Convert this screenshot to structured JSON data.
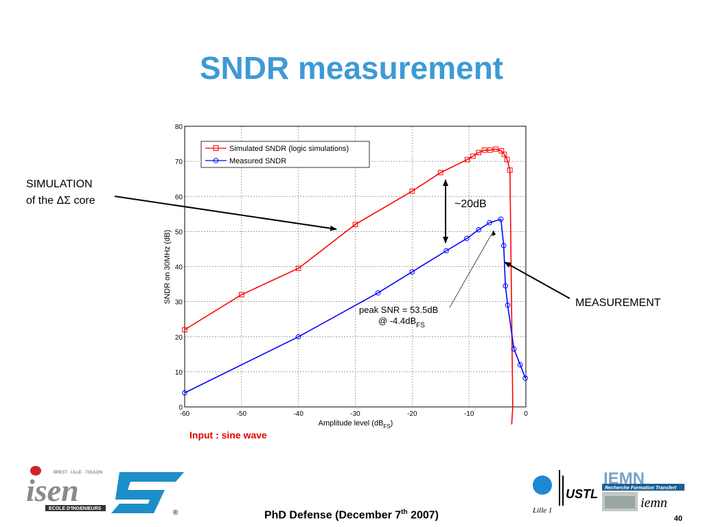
{
  "slide": {
    "title": "SNDR measurement",
    "annotations": {
      "simulation_line1": "SIMULATION",
      "simulation_line2": "of the ΔΣ core",
      "measurement": "MEASUREMENT",
      "gap": "~20dB",
      "peak_line1": "peak SNR = 53.5dB",
      "peak_line2_main": "@ -4.4dB",
      "peak_line2_sub": "FS"
    },
    "input_note": "Input : sine wave",
    "footer_main": "PhD Defense (December 7",
    "footer_sup": "th",
    "footer_end": " 2007)",
    "page_number": "40"
  },
  "logos": {
    "isen_text": "isen",
    "isen_cities": "BREST · LILLE · TOULON",
    "isen_sub": "ECOLE D'INGENIEURS",
    "st_text": "ST",
    "st_registered": "®",
    "ustl_text": "USTL",
    "lille_text": "Lille 1",
    "iemn_text": "IEMN",
    "iemn_sub": "Recherche Formation Transfert",
    "iemn_small": "iemn"
  },
  "colors": {
    "title": "#3d9ad6",
    "simulated": "#ff0000",
    "measured": "#0000ff",
    "note": "#e00000"
  },
  "chart_data": {
    "type": "line",
    "xlabel_main": "Amplitude level (dB",
    "xlabel_sub": "FS",
    "xlabel_end": ")",
    "ylabel": "SNDR on 30MHz (dB)",
    "xlim": [
      -60,
      0
    ],
    "ylim": [
      0,
      80
    ],
    "xticks": [
      -60,
      -50,
      -40,
      -30,
      -20,
      -10,
      0
    ],
    "yticks": [
      0,
      10,
      20,
      30,
      40,
      50,
      60,
      70,
      80
    ],
    "grid": true,
    "legend_position": "top-left",
    "series": [
      {
        "name": "Simulated SNDR (logic simulations)",
        "marker": "square",
        "color": "#ff0000",
        "x": [
          -60,
          -50,
          -40,
          -30,
          -20,
          -15,
          -10.3,
          -9.3,
          -8.3,
          -7.3,
          -6.3,
          -5.3,
          -4.3,
          -3.8,
          -3.3,
          -2.8
        ],
        "y": [
          22,
          32,
          39.5,
          52,
          61.5,
          66.8,
          70.5,
          71.5,
          72.5,
          73.2,
          73.2,
          73.5,
          73,
          72,
          70.5,
          67.5
        ],
        "tail": [
          [
            -2.3,
            0
          ],
          [
            -2.5,
            -5
          ]
        ]
      },
      {
        "name": "Measured SNDR",
        "marker": "circle",
        "color": "#0000ff",
        "x": [
          -60,
          -40,
          -26,
          -20,
          -14,
          -10.4,
          -8.3,
          -6.4,
          -4.4,
          -3.9,
          -3.6,
          -3.2,
          -2.1,
          -1,
          -0.1
        ],
        "y": [
          4,
          20,
          32.5,
          38.5,
          44.5,
          48,
          50.5,
          52.5,
          53.5,
          46,
          34.5,
          29,
          16.5,
          12,
          8.2
        ]
      }
    ]
  }
}
